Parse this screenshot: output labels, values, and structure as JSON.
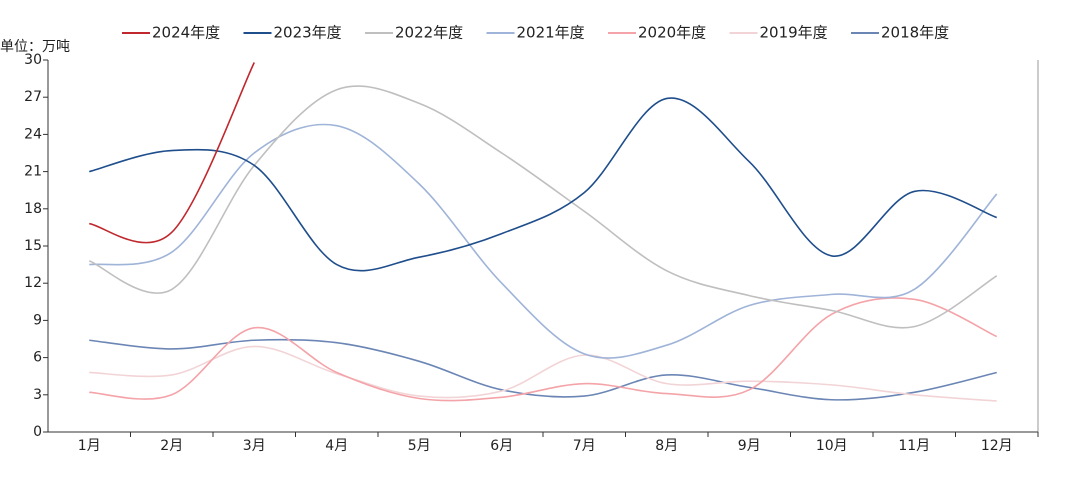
{
  "chart_data": {
    "type": "line",
    "unit_label": "单位：万吨",
    "categories": [
      "1月",
      "2月",
      "3月",
      "4月",
      "5月",
      "6月",
      "7月",
      "8月",
      "9月",
      "10月",
      "11月",
      "12月"
    ],
    "ylim": [
      0,
      30
    ],
    "yticks": [
      0,
      3,
      6,
      9,
      12,
      15,
      18,
      21,
      24,
      27,
      30
    ],
    "grid": false,
    "legend": "top",
    "series": [
      {
        "name": "2024年度",
        "color": "#c0282d",
        "values": [
          16.8,
          16.1,
          29.8,
          null,
          null,
          null,
          null,
          null,
          null,
          null,
          null,
          null
        ]
      },
      {
        "name": "2023年度",
        "color": "#1f4e8c",
        "values": [
          21.0,
          22.7,
          21.5,
          13.5,
          14.1,
          16.0,
          19.3,
          26.9,
          21.8,
          14.2,
          19.4,
          17.3
        ]
      },
      {
        "name": "2022年度",
        "color": "#bfbfbf",
        "values": [
          13.8,
          11.5,
          21.5,
          27.6,
          26.5,
          22.5,
          17.8,
          13.0,
          11.0,
          9.8,
          8.5,
          12.6
        ]
      },
      {
        "name": "2021年度",
        "color": "#9fb4d8",
        "values": [
          13.5,
          14.5,
          22.5,
          24.7,
          20.0,
          12.0,
          6.3,
          7.0,
          10.2,
          11.1,
          11.5,
          19.2
        ]
      },
      {
        "name": "2020年度",
        "color": "#f4a3a8",
        "values": [
          3.2,
          3.0,
          8.4,
          4.8,
          2.7,
          2.8,
          3.9,
          3.1,
          3.4,
          9.5,
          10.7,
          7.7
        ]
      },
      {
        "name": "2019年度",
        "color": "#f2d4d7",
        "values": [
          4.8,
          4.6,
          6.9,
          4.7,
          2.9,
          3.3,
          6.2,
          3.9,
          4.1,
          3.8,
          3.0,
          2.5
        ]
      },
      {
        "name": "2018年度",
        "color": "#6b86b5",
        "values": [
          7.4,
          6.7,
          7.4,
          7.2,
          5.7,
          3.4,
          2.9,
          4.6,
          3.6,
          2.6,
          3.2,
          4.8
        ]
      }
    ]
  }
}
